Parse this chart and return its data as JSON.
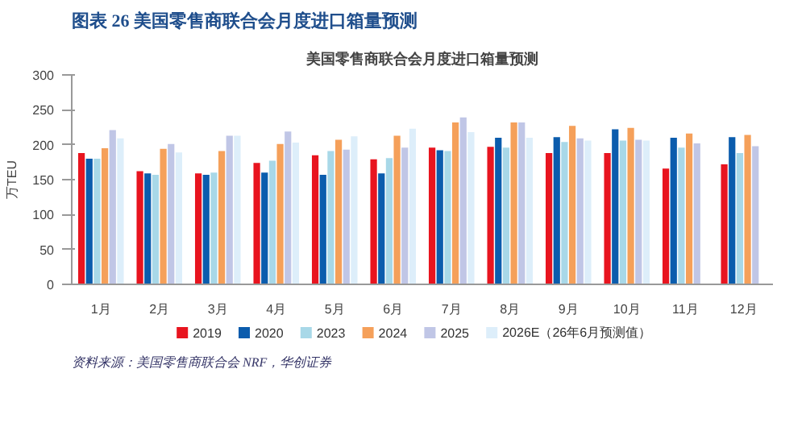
{
  "chart_data": {
    "type": "bar",
    "title": "图表 26 美国零售商联合会月度进口箱量预测",
    "subtitle": "美国零售商联合会月度进口箱量预测",
    "ylabel": "万TEU",
    "categories": [
      "1月",
      "2月",
      "3月",
      "4月",
      "5月",
      "6月",
      "7月",
      "8月",
      "9月",
      "10月",
      "11月",
      "12月"
    ],
    "series": [
      {
        "name": "2019",
        "color": "#e8141f",
        "values": [
          188,
          162,
          159,
          174,
          185,
          179,
          196,
          197,
          188,
          188,
          166,
          172
        ]
      },
      {
        "name": "2020",
        "color": "#0b5cad",
        "values": [
          180,
          159,
          157,
          160,
          157,
          159,
          192,
          210,
          211,
          222,
          210,
          211
        ]
      },
      {
        "name": "2023",
        "color": "#a8d8e8",
        "values": [
          180,
          157,
          160,
          177,
          191,
          181,
          191,
          196,
          204,
          206,
          196,
          188
        ]
      },
      {
        "name": "2024",
        "color": "#f5a05a",
        "values": [
          195,
          194,
          191,
          201,
          207,
          213,
          232,
          232,
          227,
          224,
          216,
          214
        ]
      },
      {
        "name": "2025",
        "color": "#c0c6e6",
        "values": [
          221,
          201,
          213,
          219,
          193,
          196,
          239,
          232,
          209,
          207,
          202,
          198
        ]
      },
      {
        "name": "2026E（26年6月预测值）",
        "color": "#ddeefa",
        "values": [
          209,
          189,
          213,
          203,
          212,
          223,
          218,
          210,
          206,
          206,
          null,
          null
        ]
      }
    ],
    "ylim": [
      0,
      300
    ],
    "yticks": [
      0,
      50,
      100,
      150,
      200,
      250,
      300
    ],
    "grid": false,
    "legend": "bottom",
    "annotations": [
      "资料来源：美国零售商联合会 NRF，华创证券"
    ]
  }
}
